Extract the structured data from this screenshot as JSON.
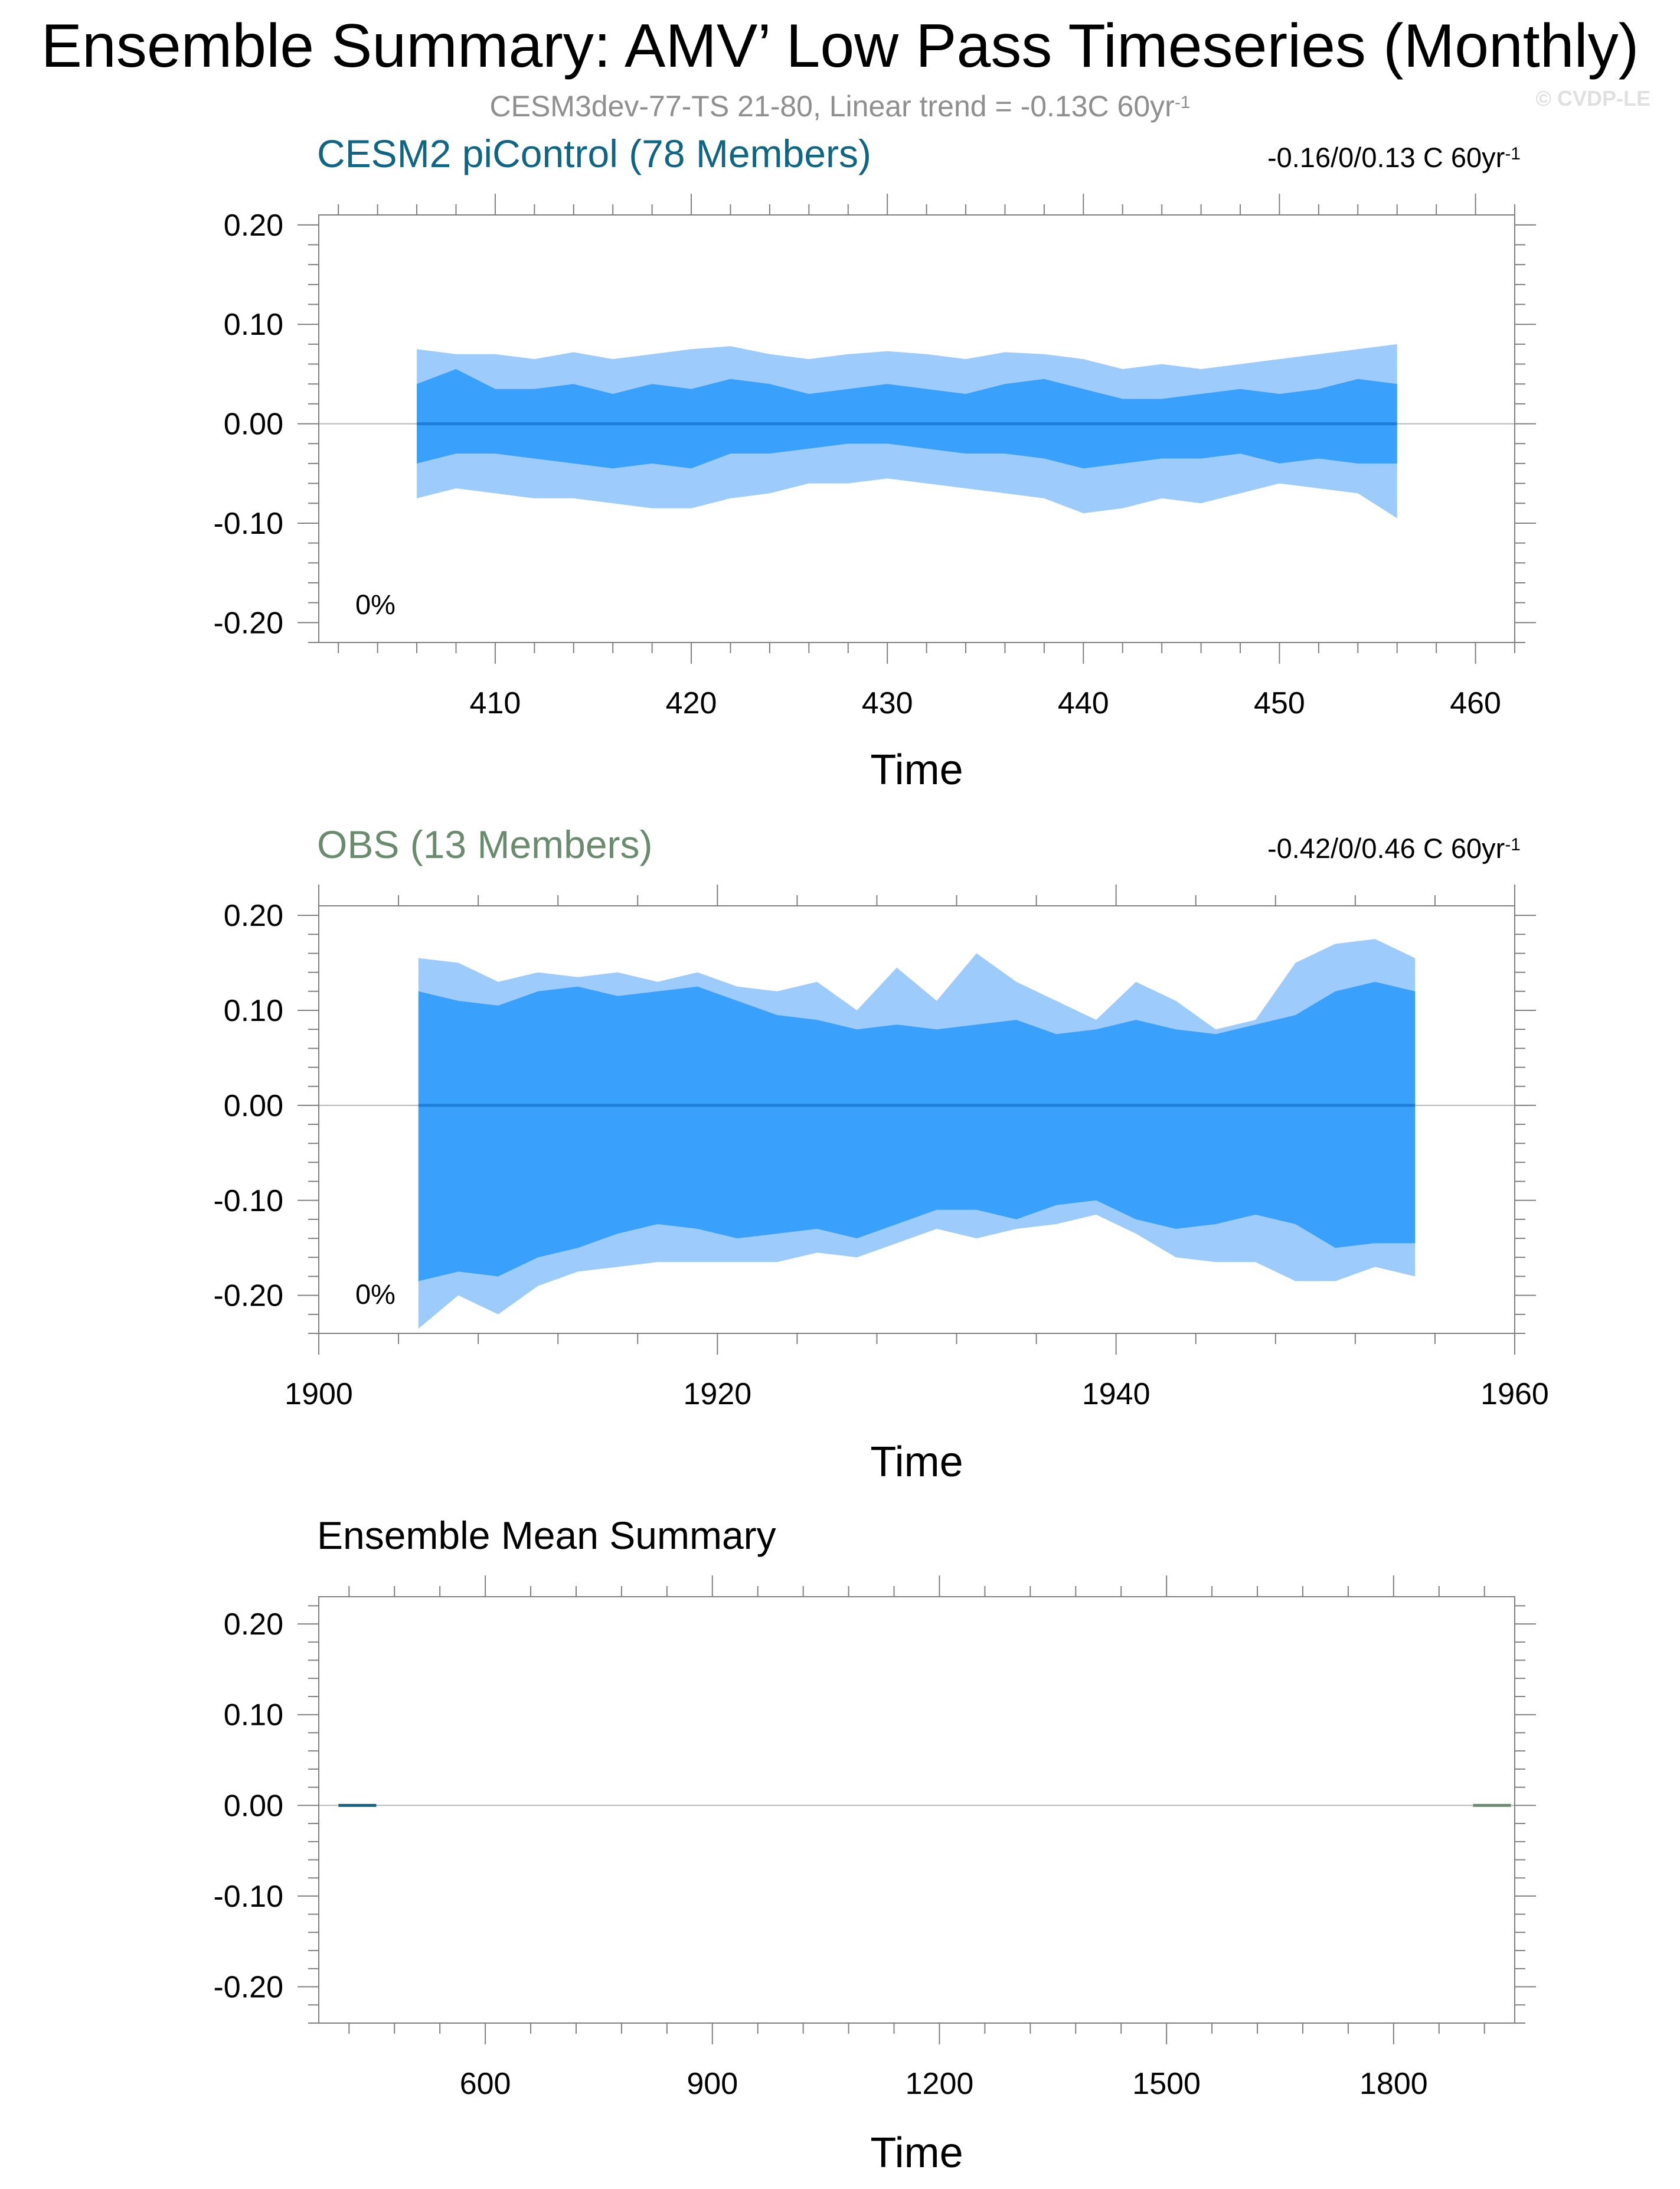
{
  "title": "Ensemble Summary: AMV’ Low Pass Timeseries (Monthly)",
  "subtitle_text": "CESM3dev-77-TS 21-80, Linear trend = -0.13C 60yr",
  "subtitle_sup": "-1",
  "copyright": "© CVDP-LE",
  "colors": {
    "outer_band": "#9dcbfc",
    "inner_band": "#39a0fb",
    "mean_line": "#1f7fd8",
    "cesm_title": "#0f6584",
    "obs_title": "#6a8b6e",
    "axis": "#808080"
  },
  "panels": [
    {
      "title": "CESM2 piControl (78 Members)",
      "range_text": "-0.16/0/0.13 C 60yr",
      "range_sup": "-1",
      "percent_label": "0%",
      "xlabel": "Time",
      "chart_data": {
        "type": "area",
        "title": "CESM2 piControl (78 Members)",
        "xlabel": "Time",
        "ylabel": "",
        "xlim": [
          401,
          462
        ],
        "ylim": [
          -0.22,
          0.21
        ],
        "xticks": [
          410,
          420,
          430,
          440,
          450,
          460
        ],
        "yticks": [
          0.2,
          0.1,
          0.0,
          -0.1,
          -0.2
        ],
        "ytick_labels": [
          "0.20",
          "0.10",
          "0.00",
          "-0.10",
          "-0.20"
        ],
        "x": [
          406,
          408,
          410,
          412,
          414,
          416,
          418,
          420,
          422,
          424,
          426,
          428,
          430,
          432,
          434,
          436,
          438,
          440,
          442,
          444,
          446,
          448,
          450,
          452,
          454,
          456
        ],
        "series": [
          {
            "values": [
              0.075,
              0.07,
              0.07,
              0.065,
              0.072,
              0.065,
              0.07,
              0.075,
              0.078,
              0.07,
              0.065,
              0.07,
              0.073,
              0.07,
              0.065,
              0.072,
              0.07,
              0.065,
              0.055,
              0.06,
              0.055,
              0.06,
              0.065,
              0.07,
              0.075,
              0.08
            ]
          },
          {
            "values": [
              0.04,
              0.055,
              0.035,
              0.035,
              0.04,
              0.03,
              0.04,
              0.035,
              0.045,
              0.04,
              0.03,
              0.035,
              0.04,
              0.035,
              0.03,
              0.04,
              0.045,
              0.035,
              0.025,
              0.025,
              0.03,
              0.035,
              0.03,
              0.035,
              0.045,
              0.04
            ]
          },
          {
            "values": [
              0,
              0,
              0,
              0,
              0,
              0,
              0,
              0,
              0,
              0,
              0,
              0,
              0,
              0,
              0,
              0,
              0,
              0,
              0,
              0,
              0,
              0,
              0,
              0,
              0,
              0
            ]
          },
          {
            "values": [
              -0.04,
              -0.03,
              -0.03,
              -0.035,
              -0.04,
              -0.045,
              -0.04,
              -0.045,
              -0.03,
              -0.03,
              -0.025,
              -0.02,
              -0.02,
              -0.025,
              -0.03,
              -0.03,
              -0.035,
              -0.045,
              -0.04,
              -0.035,
              -0.035,
              -0.03,
              -0.04,
              -0.035,
              -0.04,
              -0.04
            ]
          },
          {
            "values": [
              -0.075,
              -0.065,
              -0.07,
              -0.075,
              -0.075,
              -0.08,
              -0.085,
              -0.085,
              -0.075,
              -0.07,
              -0.06,
              -0.06,
              -0.055,
              -0.06,
              -0.065,
              -0.07,
              -0.075,
              -0.09,
              -0.085,
              -0.075,
              -0.08,
              -0.07,
              -0.06,
              -0.065,
              -0.07,
              -0.095
            ]
          }
        ]
      }
    },
    {
      "title": "OBS (13 Members)",
      "range_text": "-0.42/0/0.46 C 60yr",
      "range_sup": "-1",
      "percent_label": "0%",
      "xlabel": "Time",
      "chart_data": {
        "type": "area",
        "title": "OBS (13 Members)",
        "xlabel": "Time",
        "ylabel": "",
        "xlim": [
          1900,
          1960
        ],
        "ylim": [
          -0.24,
          0.21
        ],
        "xticks": [
          1900,
          1920,
          1940,
          1960
        ],
        "yticks": [
          0.2,
          0.1,
          0.0,
          -0.1,
          -0.2
        ],
        "ytick_labels": [
          "0.20",
          "0.10",
          "0.00",
          "-0.10",
          "-0.20"
        ],
        "x": [
          1905,
          1907,
          1909,
          1911,
          1913,
          1915,
          1917,
          1919,
          1921,
          1923,
          1925,
          1927,
          1929,
          1931,
          1933,
          1935,
          1937,
          1939,
          1941,
          1943,
          1945,
          1947,
          1949,
          1951,
          1953,
          1955
        ],
        "series": [
          {
            "values": [
              0.155,
              0.15,
              0.13,
              0.14,
              0.135,
              0.14,
              0.13,
              0.14,
              0.125,
              0.12,
              0.13,
              0.1,
              0.145,
              0.11,
              0.16,
              0.13,
              0.11,
              0.09,
              0.13,
              0.11,
              0.08,
              0.09,
              0.15,
              0.17,
              0.175,
              0.155
            ]
          },
          {
            "values": [
              0.12,
              0.11,
              0.105,
              0.12,
              0.125,
              0.115,
              0.12,
              0.125,
              0.11,
              0.095,
              0.09,
              0.08,
              0.085,
              0.08,
              0.085,
              0.09,
              0.075,
              0.08,
              0.09,
              0.08,
              0.075,
              0.085,
              0.095,
              0.12,
              0.13,
              0.12
            ]
          },
          {
            "values": [
              0,
              0,
              0,
              0,
              0,
              0,
              0,
              0,
              0,
              0,
              0,
              0,
              0,
              0,
              0,
              0,
              0,
              0,
              0,
              0,
              0,
              0,
              0,
              0,
              0,
              0
            ]
          },
          {
            "values": [
              -0.185,
              -0.175,
              -0.18,
              -0.16,
              -0.15,
              -0.135,
              -0.125,
              -0.13,
              -0.14,
              -0.135,
              -0.13,
              -0.14,
              -0.125,
              -0.11,
              -0.11,
              -0.12,
              -0.105,
              -0.1,
              -0.12,
              -0.13,
              -0.125,
              -0.115,
              -0.125,
              -0.15,
              -0.145,
              -0.145
            ]
          },
          {
            "values": [
              -0.235,
              -0.2,
              -0.22,
              -0.19,
              -0.175,
              -0.17,
              -0.165,
              -0.165,
              -0.165,
              -0.165,
              -0.155,
              -0.16,
              -0.145,
              -0.13,
              -0.14,
              -0.13,
              -0.125,
              -0.115,
              -0.135,
              -0.16,
              -0.165,
              -0.165,
              -0.185,
              -0.185,
              -0.17,
              -0.18
            ]
          }
        ]
      }
    },
    {
      "title": "Ensemble Mean Summary",
      "xlabel": "Time",
      "chart_data": {
        "type": "line",
        "title": "Ensemble Mean Summary",
        "xlabel": "Time",
        "ylabel": "",
        "xlim": [
          380,
          1960
        ],
        "ylim": [
          -0.24,
          0.23
        ],
        "xticks": [
          600,
          900,
          1200,
          1500,
          1800
        ],
        "yticks": [
          0.2,
          0.1,
          0.0,
          -0.1,
          -0.2
        ],
        "ytick_labels": [
          "0.20",
          "0.10",
          "0.00",
          "-0.10",
          "-0.20"
        ],
        "series": [
          {
            "name": "CESM2 piControl",
            "x": [
              406,
              456
            ],
            "values": [
              0,
              0
            ],
            "color": "#0f6584"
          },
          {
            "name": "OBS",
            "x": [
              1905,
              1955
            ],
            "values": [
              0,
              0
            ],
            "color": "#6a8b6e"
          }
        ]
      }
    }
  ]
}
